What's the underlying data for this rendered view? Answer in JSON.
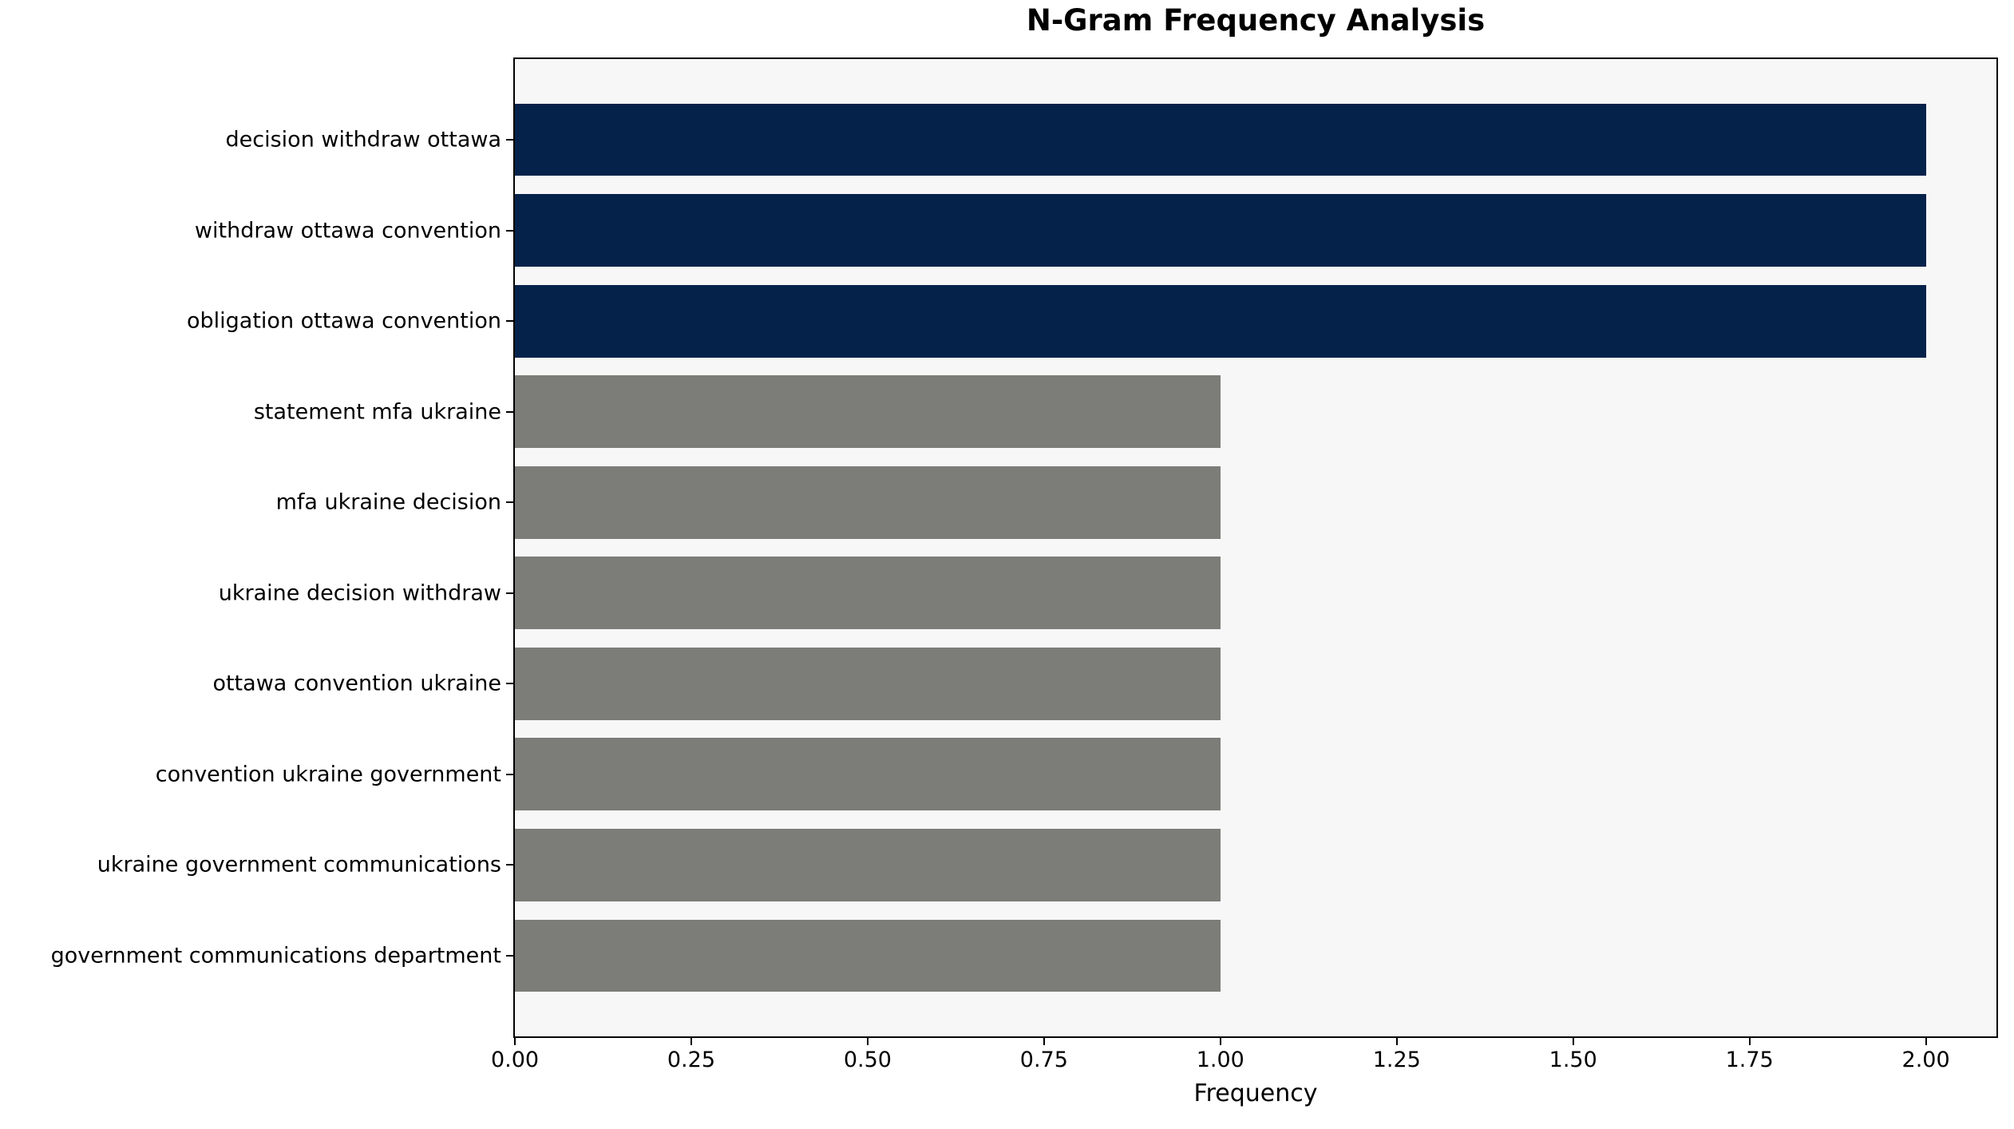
{
  "chart_data": {
    "type": "bar",
    "orientation": "horizontal",
    "title": "N-Gram Frequency Analysis",
    "xlabel": "Frequency",
    "ylabel": "",
    "categories": [
      "decision withdraw ottawa",
      "withdraw ottawa convention",
      "obligation ottawa convention",
      "statement mfa ukraine",
      "mfa ukraine decision",
      "ukraine decision withdraw",
      "ottawa convention ukraine",
      "convention ukraine government",
      "ukraine government communications",
      "government communications department"
    ],
    "values": [
      2,
      2,
      2,
      1,
      1,
      1,
      1,
      1,
      1,
      1
    ],
    "bar_colors": [
      "#05224b",
      "#05224b",
      "#05224b",
      "#7c7c78",
      "#7c7c78",
      "#7c7c78",
      "#7c7c78",
      "#7c7c78",
      "#7c7c78",
      "#7c7c78"
    ],
    "xlim": [
      0,
      2.1
    ],
    "x_ticks": [
      0,
      0.25,
      0.5,
      0.75,
      1.0,
      1.25,
      1.5,
      1.75,
      2.0
    ],
    "x_tick_labels": [
      "0.00",
      "0.25",
      "0.50",
      "0.75",
      "1.00",
      "1.25",
      "1.50",
      "1.75",
      "2.00"
    ],
    "grid": false,
    "legend": null,
    "plot_bg": "#f7f7f7",
    "figure_bg": "#ffffff",
    "accent_color": "#05224b",
    "muted_color": "#7c7c78"
  }
}
